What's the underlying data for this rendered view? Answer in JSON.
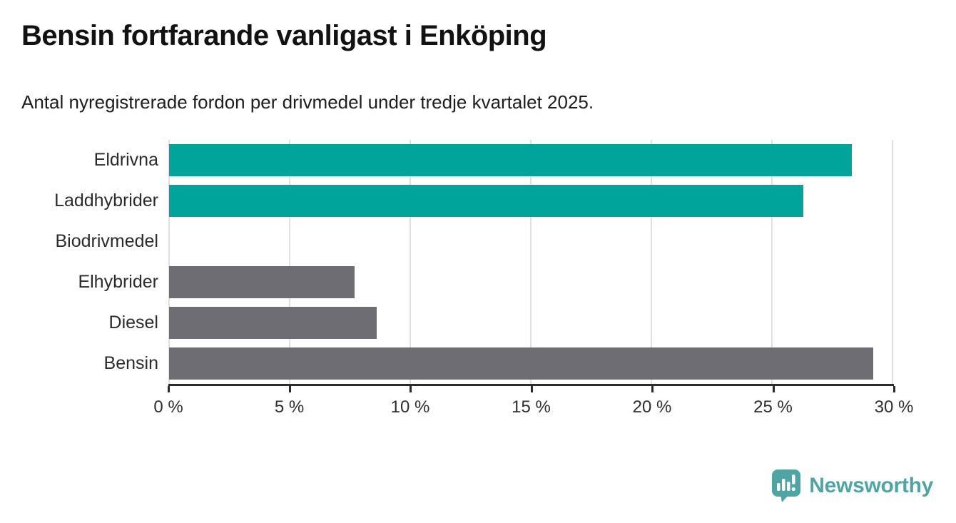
{
  "header": {
    "title": "Bensin fortfarande vanligast i Enköping",
    "subtitle": "Antal nyregistrerade fordon per drivmedel under tredje kvartalet 2025."
  },
  "chart_data": {
    "type": "bar",
    "orientation": "horizontal",
    "title": "Bensin fortfarande vanligast i Enköping",
    "subtitle": "Antal nyregistrerade fordon per drivmedel under tredje kvartalet 2025.",
    "categories": [
      "Eldrivna",
      "Laddhybrider",
      "Biodrivmedel",
      "Elhybrider",
      "Diesel",
      "Bensin"
    ],
    "values": [
      28.3,
      26.3,
      0,
      7.7,
      8.6,
      29.2
    ],
    "unit": "%",
    "bar_colors": [
      "#00a49a",
      "#00a49a",
      "#6d6d73",
      "#6d6d73",
      "#6d6d73",
      "#6d6d73"
    ],
    "xlim": [
      0,
      30
    ],
    "x_ticks": [
      0,
      5,
      10,
      15,
      20,
      25,
      30
    ],
    "x_tick_labels": [
      "0 %",
      "5 %",
      "10 %",
      "15 %",
      "20 %",
      "25 %",
      "30 %"
    ],
    "xlabel": "",
    "ylabel": "",
    "grid": "vertical gridlines on",
    "legend": "none"
  },
  "colors": {
    "accent_teal": "#00a49a",
    "neutral_gray": "#6d6d73",
    "gridline": "#e0e0e0",
    "axis": "#2b2b2b",
    "text_dark": "#121212",
    "logo_teal": "#4fa5a4"
  },
  "branding": {
    "logo_text": "Newsworthy",
    "logo_icon": "newsworthy-speech-bubble-barchart-icon"
  }
}
